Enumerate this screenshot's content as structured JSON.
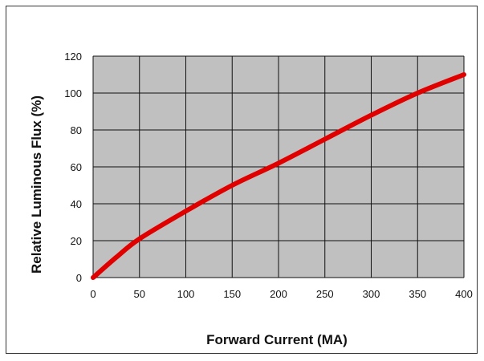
{
  "chart_data": {
    "type": "line",
    "title": "",
    "xlabel": "Forward Current (MA)",
    "ylabel": "Relative Luminous Flux (%)",
    "xlim": [
      0,
      400
    ],
    "ylim": [
      0,
      120
    ],
    "grid": true,
    "x_ticks": [
      "0",
      "50",
      "100",
      "150",
      "200",
      "250",
      "300",
      "350",
      "400"
    ],
    "y_ticks": [
      "0",
      "20",
      "40",
      "60",
      "80",
      "100",
      "120"
    ],
    "series": [
      {
        "color": "#e00000",
        "x": [
          0,
          25,
          50,
          100,
          150,
          200,
          250,
          300,
          350,
          400
        ],
        "y": [
          0,
          11,
          21,
          36,
          50,
          62,
          75,
          88,
          100,
          110
        ]
      }
    ],
    "colors": {
      "plot_background": "#c0c0c0",
      "grid": "#111111",
      "line": "#e00000"
    }
  }
}
